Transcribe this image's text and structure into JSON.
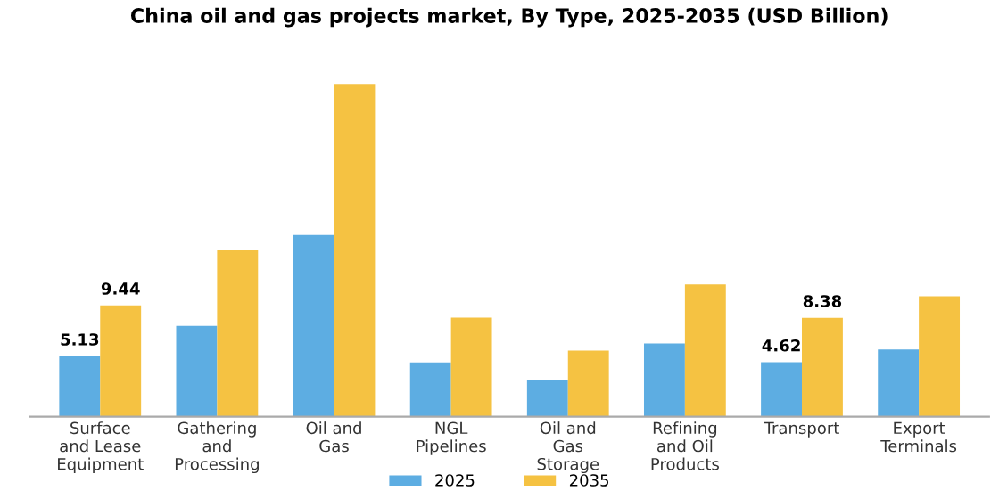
{
  "chart_data": {
    "type": "bar",
    "title": "China oil and gas projects market, By Type, 2025-2035 (USD Billion)",
    "categories": [
      "Surface\nand Lease\nEquipment",
      "Gathering\nand\nProcessing",
      "Oil and\nGas",
      "NGL\nPipelines",
      "Oil and\nGas\nStorage",
      "Refining\nand Oil\nProducts",
      "Transport",
      "Export\nTerminals"
    ],
    "series": [
      {
        "name": "2025",
        "color": "#5dade2",
        "values": [
          5.13,
          7.7,
          15.4,
          4.6,
          3.1,
          6.2,
          4.62,
          5.7
        ],
        "value_labels": [
          "5.13",
          null,
          null,
          null,
          null,
          null,
          "4.62",
          null
        ]
      },
      {
        "name": "2035",
        "color": "#f5c242",
        "values": [
          9.44,
          14.1,
          28.2,
          8.4,
          5.6,
          11.2,
          8.38,
          10.2
        ],
        "value_labels": [
          "9.44",
          null,
          null,
          null,
          null,
          null,
          "8.38",
          null
        ]
      }
    ],
    "legend": "bottom",
    "grid": false
  }
}
